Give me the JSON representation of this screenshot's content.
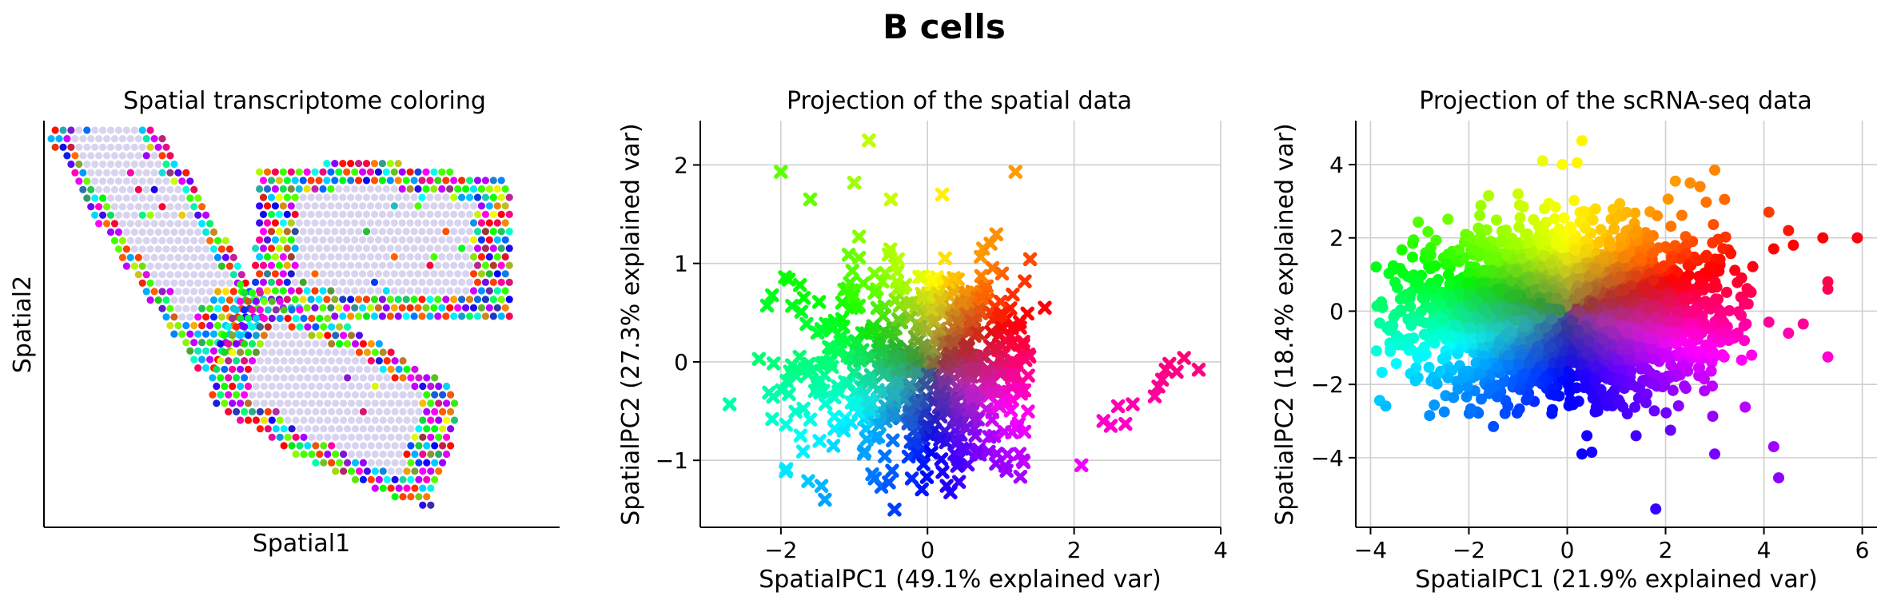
{
  "figure": {
    "suptitle": "B cells"
  },
  "chart_data": [
    {
      "type": "scatter",
      "title": "Spatial transcriptome coloring",
      "xlabel": "Spatial1",
      "ylabel": "Spatial2",
      "ticks": false,
      "grid": false,
      "marker": "circle",
      "background_spot_color": "#d8d4f0",
      "tissue_sections": [
        {
          "name": "",
          "center": [
            0.32,
            0.78
          ],
          "semi_axes": [
            0.43,
            0.14
          ],
          "angle_deg": -52
        },
        {
          "name": "",
          "center": [
            1.03,
            0.7
          ],
          "semi_axes": [
            0.39,
            0.19
          ],
          "angle_deg": -3
        },
        {
          "name": "",
          "center": [
            0.88,
            0.32
          ],
          "semi_axes": [
            0.37,
            0.17
          ],
          "angle_deg": -22
        }
      ],
      "xlim": [
        0,
        1.56
      ],
      "ylim": [
        0,
        1.0
      ]
    },
    {
      "type": "scatter",
      "title": "Projection of the spatial data",
      "xlabel": "SpatialPC1 (49.1% explained var)",
      "ylabel": "SpatialPC2 (27.3% explained var)",
      "marker": "x",
      "grid": true,
      "xlim": [
        -3.1,
        4.0
      ],
      "ylim": [
        -1.68,
        2.45
      ],
      "xticks": [
        -2,
        0,
        2,
        4
      ],
      "yticks": [
        -1,
        0,
        1,
        2
      ],
      "cloud": {
        "n": 700,
        "center": [
          0.05,
          -0.05
        ],
        "spread": [
          0.95,
          0.55
        ]
      },
      "outliers": [
        [
          -2.7,
          -0.43
        ],
        [
          -2.3,
          0.03
        ],
        [
          -2.0,
          1.93
        ],
        [
          -1.6,
          1.65
        ],
        [
          -0.8,
          2.25
        ],
        [
          -1.0,
          1.82
        ],
        [
          -0.5,
          1.65
        ],
        [
          1.2,
          1.93
        ],
        [
          0.2,
          1.7
        ],
        [
          -0.45,
          -1.5
        ],
        [
          -1.4,
          -1.4
        ],
        [
          1.3,
          -1.0
        ],
        [
          1.6,
          0.55
        ],
        [
          2.1,
          -1.05
        ],
        [
          2.4,
          -0.6
        ],
        [
          2.5,
          -0.65
        ],
        [
          2.6,
          -0.45
        ],
        [
          2.7,
          -0.63
        ],
        [
          2.8,
          -0.43
        ],
        [
          3.1,
          -0.35
        ],
        [
          3.15,
          -0.25
        ],
        [
          3.2,
          -0.18
        ],
        [
          3.25,
          -0.08
        ],
        [
          3.3,
          -0.02
        ],
        [
          3.4,
          -0.1
        ],
        [
          3.5,
          0.04
        ],
        [
          3.7,
          -0.08
        ]
      ]
    },
    {
      "type": "scatter",
      "title": "Projection of the scRNA-seq data",
      "xlabel": "SpatialPC1 (21.9% explained var)",
      "ylabel": "SpatialPC2 (18.4% explained var)",
      "marker": "circle",
      "grid": true,
      "xlim": [
        -4.3,
        6.3
      ],
      "ylim": [
        -5.9,
        5.2
      ],
      "xticks": [
        -4,
        -2,
        0,
        2,
        4,
        6
      ],
      "yticks": [
        -4,
        -2,
        0,
        2,
        4
      ],
      "cloud": {
        "n": 3200,
        "center": [
          0.0,
          0.0
        ],
        "spread": [
          1.55,
          1.05
        ]
      },
      "outliers": [
        [
          -0.5,
          4.1
        ],
        [
          -0.1,
          4.0
        ],
        [
          0.2,
          4.05
        ],
        [
          0.3,
          4.65
        ],
        [
          -1.0,
          3.2
        ],
        [
          -1.6,
          3.15
        ],
        [
          2.5,
          3.5
        ],
        [
          3.0,
          3.85
        ],
        [
          3.2,
          3.05
        ],
        [
          2.2,
          3.55
        ],
        [
          2.7,
          3.4
        ],
        [
          4.1,
          2.7
        ],
        [
          4.5,
          2.2
        ],
        [
          5.2,
          2.0
        ],
        [
          5.9,
          2.0
        ],
        [
          4.2,
          1.7
        ],
        [
          4.6,
          1.8
        ],
        [
          5.3,
          0.6
        ],
        [
          5.3,
          0.8
        ],
        [
          5.3,
          -1.25
        ],
        [
          4.8,
          -0.35
        ],
        [
          4.1,
          -0.3
        ],
        [
          4.2,
          -3.7
        ],
        [
          4.3,
          -4.55
        ],
        [
          3.0,
          -3.9
        ],
        [
          1.8,
          -5.4
        ],
        [
          0.4,
          -3.4
        ],
        [
          0.3,
          -3.9
        ],
        [
          0.5,
          -3.85
        ],
        [
          1.4,
          -3.4
        ],
        [
          2.1,
          -3.25
        ],
        [
          -2.8,
          -2.85
        ],
        [
          -2.5,
          -2.75
        ],
        [
          -1.5,
          -3.15
        ],
        [
          -3.6,
          -1.1
        ],
        [
          -3.5,
          1.15
        ],
        [
          3.75,
          -1.2
        ],
        [
          4.5,
          -0.6
        ]
      ]
    }
  ]
}
